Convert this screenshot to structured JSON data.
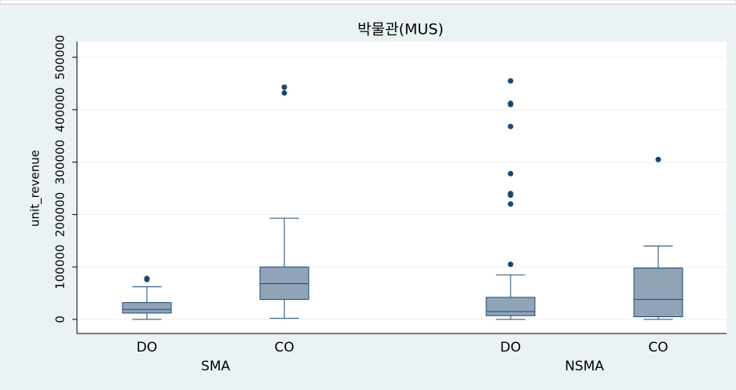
{
  "chart_data": {
    "type": "box",
    "title": "박물관(MUS)",
    "ylabel": "unit_revenue",
    "ylim": [
      -27000,
      530000
    ],
    "yticks": [
      0,
      100000,
      200000,
      300000,
      400000,
      500000
    ],
    "grid": true,
    "color": "#90a4b8",
    "line_color": "#1a476f",
    "groups": [
      {
        "name": "SMA",
        "boxes": [
          {
            "name": "DO",
            "whislo": 0,
            "q1": 12000,
            "med": 19000,
            "q3": 32000,
            "whishi": 62000,
            "outliers": [
              76000,
              78000
            ]
          },
          {
            "name": "CO",
            "whislo": 2000,
            "q1": 38000,
            "med": 68000,
            "q3": 100000,
            "whishi": 193000,
            "outliers": [
              432000,
              443000
            ]
          }
        ]
      },
      {
        "name": "NSMA",
        "boxes": [
          {
            "name": "DO",
            "whislo": 0,
            "q1": 7000,
            "med": 15000,
            "q3": 42000,
            "whishi": 85000,
            "outliers": [
              105000,
              220000,
              237000,
              240000,
              278000,
              368000,
              410000,
              412000,
              455000
            ]
          },
          {
            "name": "CO",
            "whislo": 0,
            "q1": 5000,
            "med": 38000,
            "q3": 98000,
            "whishi": 140000,
            "outliers": [
              305000
            ]
          }
        ]
      }
    ]
  }
}
